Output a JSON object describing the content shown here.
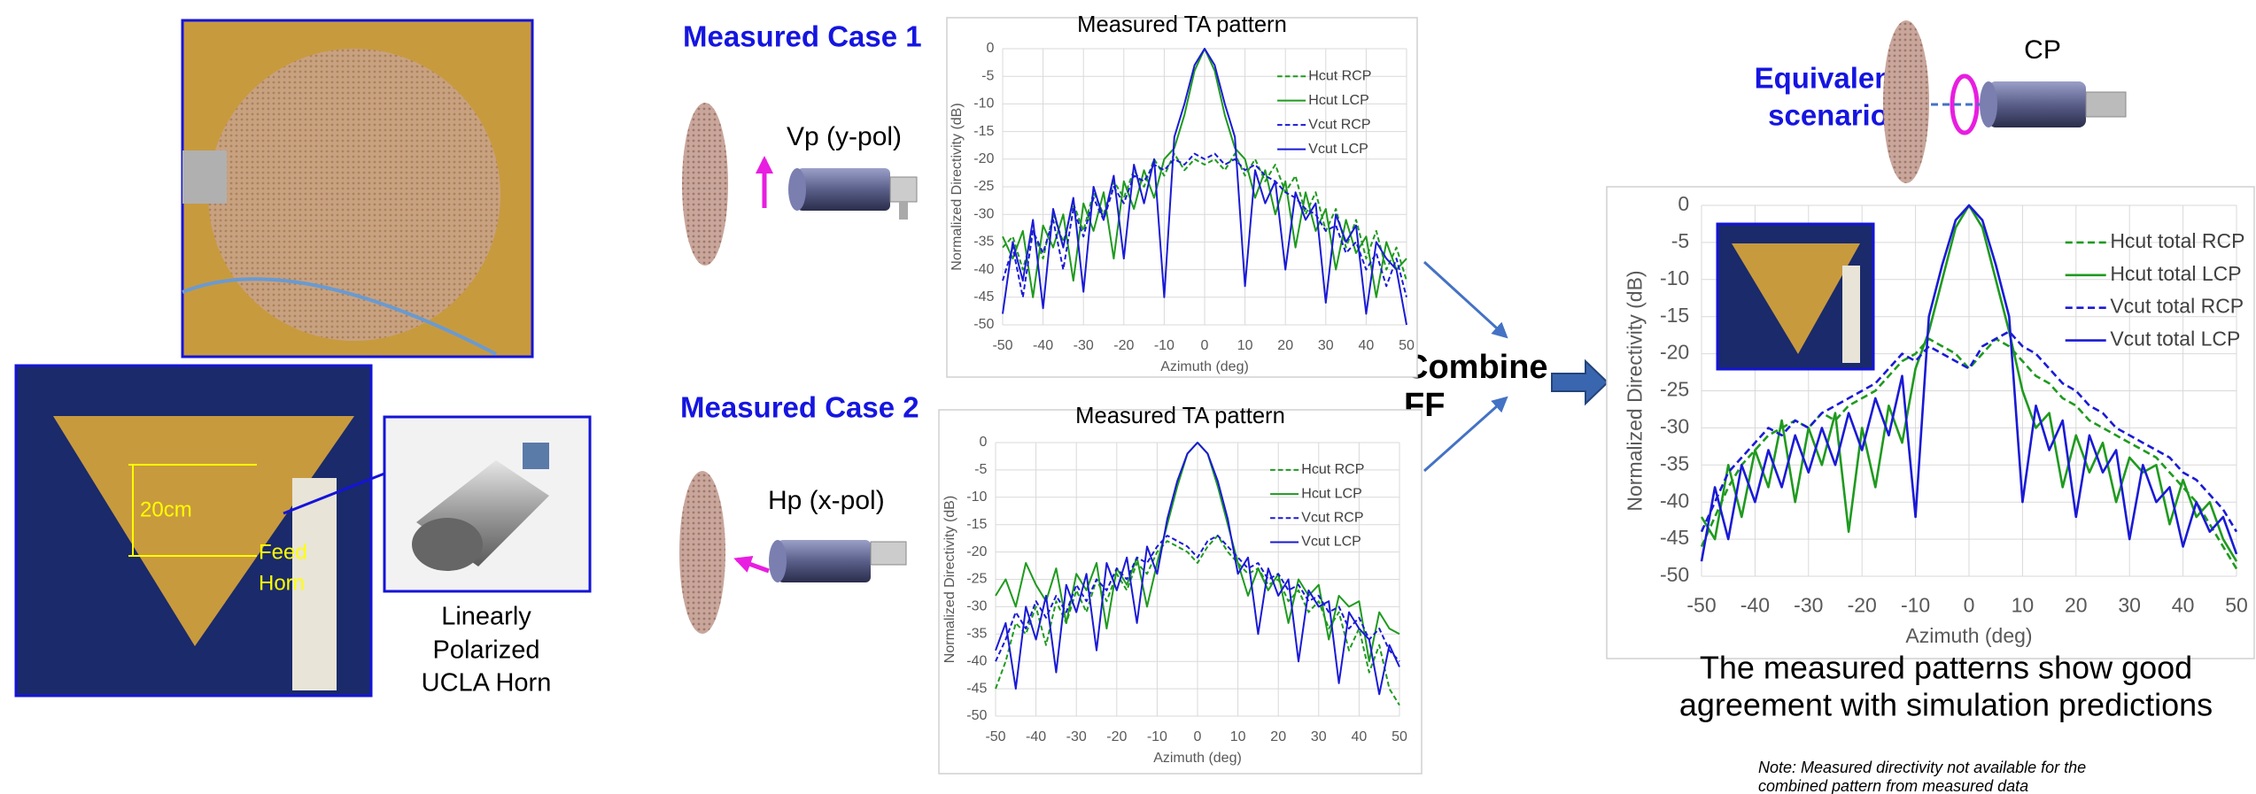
{
  "labels": {
    "case1": "Measured Case 1",
    "vp": "Vp (y-pol)",
    "case2": "Measured Case 2",
    "hp": "Hp (x-pol)",
    "combine": [
      "Combine",
      "FF"
    ],
    "equivalent": [
      "Equivalent",
      "scenario"
    ],
    "cp": "CP",
    "horn_caption": [
      "Linearly",
      "Polarized",
      "UCLA Horn"
    ],
    "dimension": "20cm",
    "feed": [
      "Feed",
      "Horn"
    ],
    "conclusion": [
      "The measured patterns show good",
      "agreement with simulation predictions"
    ],
    "note": [
      "Note: Measured directivity not available for the",
      "combined pattern from measured data"
    ]
  },
  "chart_data": [
    {
      "type": "line",
      "title": "Measured TA pattern",
      "x_label": "Azimuth (deg)",
      "y_label": "Normalized Directivity (dB)",
      "x": [
        -50,
        -47.5,
        -45,
        -42.5,
        -40,
        -37.5,
        -35,
        -32.5,
        -30,
        -27.5,
        -25,
        -22.5,
        -20,
        -17.5,
        -15,
        -12.5,
        -10,
        -7.5,
        -5,
        -2.5,
        0,
        2.5,
        5,
        7.5,
        10,
        12.5,
        15,
        17.5,
        20,
        22.5,
        25,
        27.5,
        30,
        32.5,
        35,
        37.5,
        40,
        42.5,
        45,
        47.5,
        50
      ],
      "series": [
        {
          "name": "Hcut RCP",
          "color": "#1f9a1f",
          "style": "dashed",
          "values": [
            -36,
            -34,
            -40,
            -33,
            -38,
            -30,
            -35,
            -28,
            -33,
            -26,
            -30,
            -24,
            -27,
            -22,
            -25,
            -20,
            -23,
            -19,
            -22,
            -20,
            -21,
            -20,
            -22,
            -19,
            -23,
            -20,
            -24,
            -21,
            -26,
            -23,
            -30,
            -26,
            -33,
            -29,
            -36,
            -31,
            -38,
            -33,
            -40,
            -36,
            -42
          ]
        },
        {
          "name": "Hcut LCP",
          "color": "#1f9a1f",
          "style": "solid",
          "values": [
            -34,
            -38,
            -33,
            -45,
            -32,
            -36,
            -30,
            -42,
            -28,
            -33,
            -26,
            -38,
            -24,
            -29,
            -22,
            -27,
            -20,
            -18,
            -12,
            -4,
            0,
            -4,
            -12,
            -18,
            -20,
            -27,
            -22,
            -30,
            -24,
            -36,
            -26,
            -33,
            -29,
            -40,
            -31,
            -37,
            -34,
            -45,
            -35,
            -40,
            -38
          ]
        },
        {
          "name": "Vcut RCP",
          "color": "#1a1ad6",
          "style": "dashed",
          "values": [
            -42,
            -36,
            -45,
            -33,
            -37,
            -31,
            -40,
            -29,
            -34,
            -27,
            -31,
            -25,
            -28,
            -23,
            -24,
            -21,
            -22,
            -20,
            -21,
            -19,
            -20,
            -19,
            -21,
            -20,
            -22,
            -21,
            -23,
            -24,
            -26,
            -27,
            -29,
            -30,
            -33,
            -32,
            -37,
            -35,
            -40,
            -37,
            -43,
            -38,
            -45
          ]
        },
        {
          "name": "Vcut LCP",
          "color": "#1a1ad6",
          "style": "solid",
          "values": [
            -48,
            -35,
            -42,
            -31,
            -47,
            -29,
            -36,
            -27,
            -44,
            -25,
            -31,
            -23,
            -38,
            -21,
            -28,
            -20,
            -45,
            -16,
            -10,
            -3,
            0,
            -3,
            -10,
            -16,
            -43,
            -22,
            -28,
            -24,
            -40,
            -26,
            -31,
            -28,
            -46,
            -30,
            -35,
            -32,
            -48,
            -35,
            -38,
            -40,
            -50
          ]
        }
      ],
      "xlim": [
        -50,
        50
      ],
      "ylim": [
        -50,
        0
      ],
      "xticks": [
        -50,
        -40,
        -30,
        -20,
        -10,
        0,
        10,
        20,
        30,
        40,
        50
      ],
      "yticks": [
        0,
        -5,
        -10,
        -15,
        -20,
        -25,
        -30,
        -35,
        -40,
        -45,
        -50
      ],
      "grid": true,
      "legend": "upper right"
    },
    {
      "type": "line",
      "title": "Measured TA pattern",
      "x_label": "Azimuth (deg)",
      "y_label": "Normalized Directivity (dB)",
      "x": [
        -50,
        -47.5,
        -45,
        -42.5,
        -40,
        -37.5,
        -35,
        -32.5,
        -30,
        -27.5,
        -25,
        -22.5,
        -20,
        -17.5,
        -15,
        -12.5,
        -10,
        -7.5,
        -5,
        -2.5,
        0,
        2.5,
        5,
        7.5,
        10,
        12.5,
        15,
        17.5,
        20,
        22.5,
        25,
        27.5,
        30,
        32.5,
        35,
        37.5,
        40,
        42.5,
        45,
        47.5,
        50
      ],
      "series": [
        {
          "name": "Hcut RCP",
          "color": "#1f9a1f",
          "style": "dashed",
          "values": [
            -45,
            -40,
            -33,
            -35,
            -30,
            -37,
            -29,
            -33,
            -27,
            -31,
            -25,
            -29,
            -24,
            -27,
            -22,
            -24,
            -20,
            -18,
            -19,
            -20,
            -22,
            -19,
            -17,
            -20,
            -22,
            -24,
            -23,
            -26,
            -25,
            -29,
            -27,
            -31,
            -29,
            -34,
            -31,
            -38,
            -34,
            -42,
            -37,
            -45,
            -48
          ]
        },
        {
          "name": "Hcut LCP",
          "color": "#1f9a1f",
          "style": "solid",
          "values": [
            -28,
            -25,
            -30,
            -22,
            -26,
            -29,
            -23,
            -33,
            -24,
            -27,
            -22,
            -34,
            -23,
            -26,
            -21,
            -30,
            -22,
            -15,
            -8,
            -2,
            0,
            -2,
            -8,
            -15,
            -22,
            -28,
            -23,
            -27,
            -24,
            -33,
            -25,
            -28,
            -26,
            -36,
            -28,
            -30,
            -29,
            -40,
            -31,
            -34,
            -35
          ]
        },
        {
          "name": "Vcut RCP",
          "color": "#1a1ad6",
          "style": "dashed",
          "values": [
            -40,
            -36,
            -31,
            -34,
            -29,
            -32,
            -28,
            -31,
            -26,
            -29,
            -25,
            -27,
            -23,
            -25,
            -21,
            -22,
            -19,
            -17,
            -18,
            -19,
            -21,
            -18,
            -17,
            -19,
            -21,
            -23,
            -22,
            -25,
            -24,
            -27,
            -26,
            -29,
            -28,
            -31,
            -30,
            -34,
            -32,
            -36,
            -34,
            -38,
            -40
          ]
        },
        {
          "name": "Vcut LCP",
          "color": "#1a1ad6",
          "style": "solid",
          "values": [
            -38,
            -33,
            -45,
            -30,
            -36,
            -28,
            -42,
            -26,
            -31,
            -24,
            -38,
            -22,
            -27,
            -21,
            -33,
            -19,
            -24,
            -14,
            -7,
            -2,
            0,
            -2,
            -7,
            -14,
            -24,
            -21,
            -35,
            -23,
            -28,
            -25,
            -40,
            -27,
            -30,
            -29,
            -44,
            -31,
            -34,
            -36,
            -46,
            -37,
            -41
          ]
        }
      ],
      "xlim": [
        -50,
        50
      ],
      "ylim": [
        -50,
        0
      ],
      "xticks": [
        -50,
        -40,
        -30,
        -20,
        -10,
        0,
        10,
        20,
        30,
        40,
        50
      ],
      "yticks": [
        0,
        -5,
        -10,
        -15,
        -20,
        -25,
        -30,
        -35,
        -40,
        -45,
        -50
      ],
      "grid": true,
      "legend": "upper right"
    },
    {
      "type": "line",
      "x_label": "Azimuth (deg)",
      "y_label": "Normalized Directivity (dB)",
      "x": [
        -50,
        -47.5,
        -45,
        -42.5,
        -40,
        -37.5,
        -35,
        -32.5,
        -30,
        -27.5,
        -25,
        -22.5,
        -20,
        -17.5,
        -15,
        -12.5,
        -10,
        -7.5,
        -5,
        -2.5,
        0,
        2.5,
        5,
        7.5,
        10,
        12.5,
        15,
        17.5,
        20,
        22.5,
        25,
        27.5,
        30,
        32.5,
        35,
        37.5,
        40,
        42.5,
        45,
        47.5,
        50
      ],
      "series": [
        {
          "name": "Hcut total RCP",
          "color": "#1f9a1f",
          "style": "dashed",
          "values": [
            -46,
            -42,
            -38,
            -35,
            -33,
            -31,
            -30,
            -29,
            -30,
            -28,
            -29,
            -27,
            -26,
            -25,
            -23,
            -21,
            -20,
            -18,
            -19,
            -20,
            -22,
            -20,
            -18,
            -19,
            -21,
            -23,
            -24,
            -26,
            -27,
            -29,
            -30,
            -31,
            -32,
            -33,
            -34,
            -36,
            -38,
            -40,
            -43,
            -46,
            -49
          ]
        },
        {
          "name": "Hcut total LCP",
          "color": "#1f9a1f",
          "style": "solid",
          "values": [
            -42,
            -45,
            -35,
            -42,
            -33,
            -38,
            -29,
            -40,
            -30,
            -35,
            -28,
            -44,
            -30,
            -38,
            -27,
            -32,
            -22,
            -17,
            -10,
            -3,
            0,
            -3,
            -10,
            -17,
            -25,
            -30,
            -28,
            -38,
            -31,
            -36,
            -32,
            -40,
            -34,
            -36,
            -35,
            -43,
            -37,
            -42,
            -40,
            -45,
            -48
          ]
        },
        {
          "name": "Vcut total RCP",
          "color": "#1a1ad6",
          "style": "dashed",
          "values": [
            -44,
            -40,
            -36,
            -34,
            -32,
            -30,
            -31,
            -29,
            -30,
            -28,
            -27,
            -26,
            -25,
            -24,
            -22,
            -20,
            -21,
            -19,
            -20,
            -21,
            -22,
            -19,
            -18,
            -17,
            -19,
            -20,
            -22,
            -24,
            -25,
            -27,
            -28,
            -30,
            -31,
            -32,
            -33,
            -34,
            -36,
            -37,
            -39,
            -41,
            -44
          ]
        },
        {
          "name": "Vcut total LCP",
          "color": "#1a1ad6",
          "style": "solid",
          "values": [
            -48,
            -38,
            -45,
            -35,
            -40,
            -33,
            -38,
            -31,
            -36,
            -30,
            -35,
            -28,
            -33,
            -26,
            -31,
            -23,
            -42,
            -15,
            -8,
            -2,
            0,
            -2,
            -8,
            -15,
            -40,
            -27,
            -33,
            -29,
            -42,
            -31,
            -36,
            -33,
            -45,
            -35,
            -40,
            -38,
            -46,
            -40,
            -44,
            -42,
            -47
          ]
        }
      ],
      "xlim": [
        -50,
        50
      ],
      "ylim": [
        -50,
        0
      ],
      "xticks": [
        -50,
        -40,
        -30,
        -20,
        -10,
        0,
        10,
        20,
        30,
        40,
        50
      ],
      "yticks": [
        0,
        -5,
        -10,
        -15,
        -20,
        -25,
        -30,
        -35,
        -40,
        -45,
        -50
      ],
      "grid": true,
      "legend": "upper right"
    }
  ]
}
